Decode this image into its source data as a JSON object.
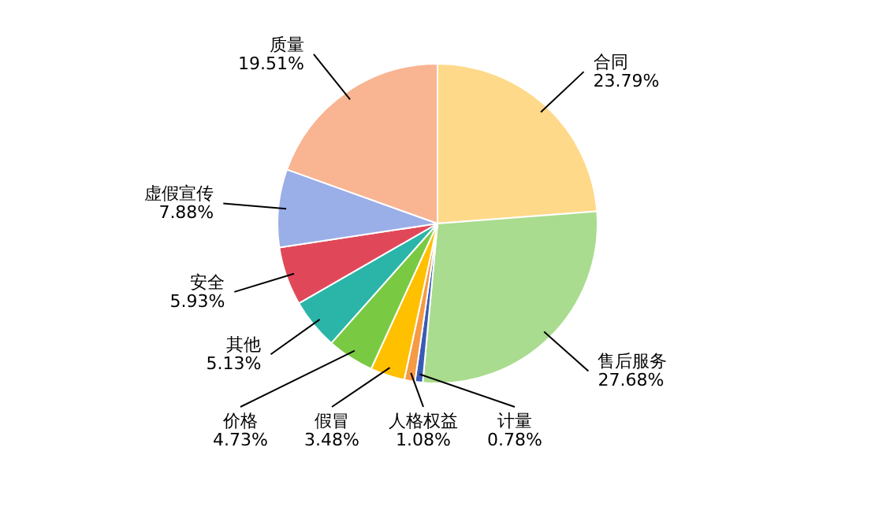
{
  "chart_data": {
    "type": "pie",
    "categories": [
      "合同",
      "售后服务",
      "计量",
      "人格权益",
      "假冒",
      "价格",
      "其他",
      "安全",
      "虚假宣传",
      "质量"
    ],
    "values": [
      23.79,
      27.68,
      0.78,
      1.08,
      3.48,
      4.73,
      5.13,
      5.93,
      7.88,
      19.51
    ],
    "value_labels": [
      "23.79%",
      "27.68%",
      "0.78%",
      "1.08%",
      "3.48%",
      "4.73%",
      "5.13%",
      "5.93%",
      "7.88%",
      "19.51%"
    ],
    "colors": [
      "#ffd98a",
      "#a9dc8e",
      "#3a5bb5",
      "#f59a45",
      "#ffc000",
      "#7ac943",
      "#2ab5a8",
      "#e0485a",
      "#9aaee8",
      "#f9b492"
    ],
    "legend": false
  }
}
